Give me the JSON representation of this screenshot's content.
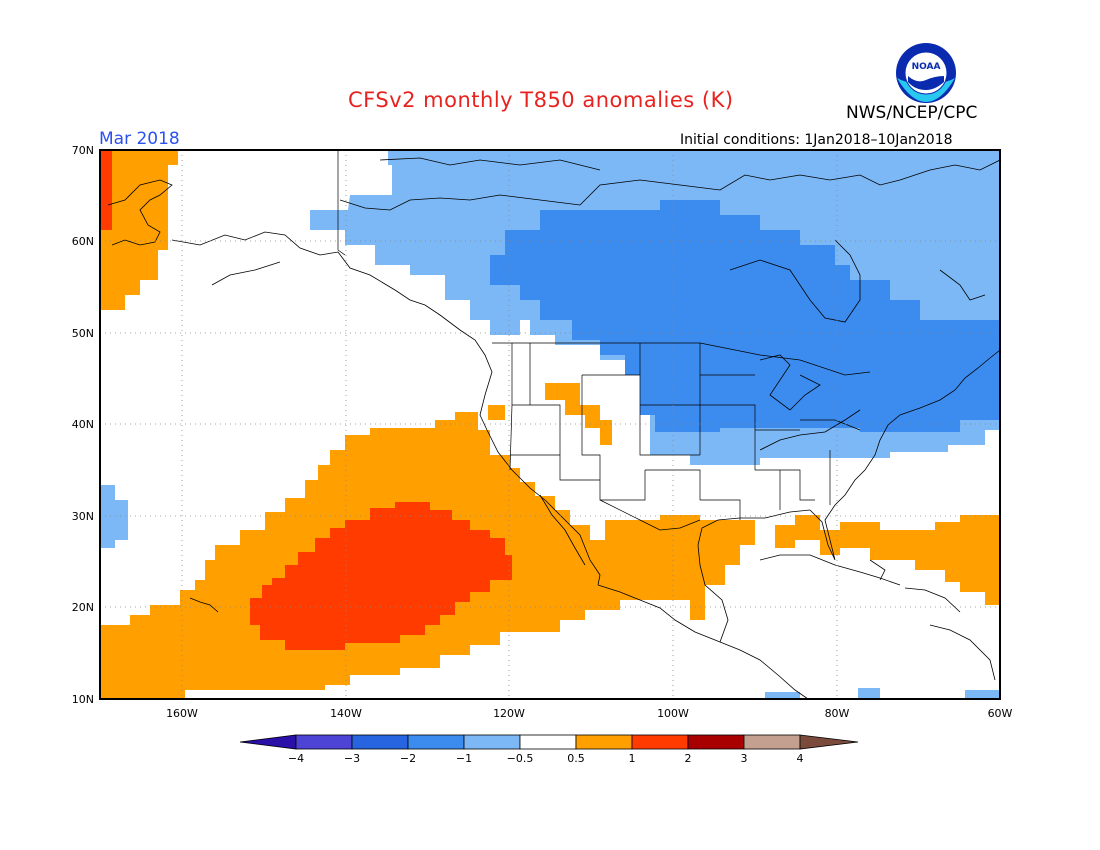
{
  "header": {
    "title": "CFSv2 monthly T850 anomalies (K)",
    "agency": "NWS/NCEP/CPC",
    "month": "Mar 2018",
    "initial_conditions": "Initial conditions: 1Jan2018–10Jan2018",
    "logo_text": "NOAA"
  },
  "colors": {
    "title": "#e8231f",
    "month": "#2b50f0",
    "ocean": "#ffffff"
  },
  "map": {
    "lon_range": [
      -170,
      -60
    ],
    "lat_range": [
      10,
      70
    ],
    "lon_ticks": [
      "160W",
      "140W",
      "120W",
      "100W",
      "80W",
      "60W"
    ],
    "lat_ticks": [
      "70N",
      "60N",
      "50N",
      "40N",
      "30N",
      "20N",
      "10N"
    ],
    "grid": "dotted"
  },
  "legend": {
    "labels": [
      "−4",
      "−3",
      "−2",
      "−1",
      "−0.5",
      "0.5",
      "1",
      "2",
      "3",
      "4"
    ],
    "colors": [
      "#2a0fa8",
      "#4d44d6",
      "#2764e0",
      "#3c8cf0",
      "#7cb8f6",
      "#ffffff",
      "#ffa000",
      "#ff3b00",
      "#a80000",
      "#c4a090",
      "#7a4a3a"
    ]
  },
  "anomaly_regions": [
    {
      "level": "-0.5 to -1",
      "color": "#7cb8f6",
      "area": "Northern Canada and Alaska interior"
    },
    {
      "level": "-1 to -2",
      "color": "#3c8cf0",
      "area": "Central Canada, Great Lakes, northeastern US"
    },
    {
      "level": "0.5 to 1",
      "color": "#ffa000",
      "area": "Eastern Pacific, northern Mexico, Gulf of Mexico, western Atlantic, far NW"
    },
    {
      "level": "1 to 2",
      "color": "#ff3b00",
      "area": "Subtropical eastern Pacific"
    }
  ]
}
